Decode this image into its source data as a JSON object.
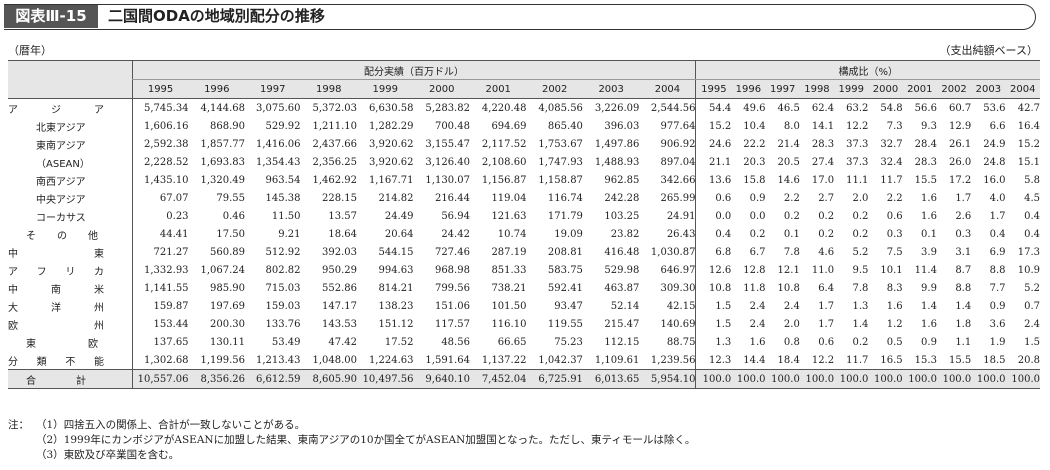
{
  "title": {
    "badge": "図表Ⅲ-15",
    "text": "二国間ODAの地域別配分の推移"
  },
  "unit_left": "（暦年）",
  "unit_right": "（支出純額ベース）",
  "headers": {
    "group1": "配分実績（百万ドル）",
    "group2": "構成比（%）",
    "years": [
      "1995",
      "1996",
      "1997",
      "1998",
      "1999",
      "2000",
      "2001",
      "2002",
      "2003",
      "2004"
    ]
  },
  "rows": [
    {
      "label": "アジア",
      "sub": false,
      "spread": true,
      "amounts": [
        "5,745.34",
        "4,144.68",
        "3,075.60",
        "5,372.03",
        "6,630.58",
        "5,283.82",
        "4,220.48",
        "4,085.56",
        "3,226.09",
        "2,544.56"
      ],
      "shares": [
        "54.4",
        "49.6",
        "46.5",
        "62.4",
        "63.2",
        "54.8",
        "56.6",
        "60.7",
        "53.6",
        "42.7"
      ]
    },
    {
      "label": "北東アジア",
      "sub": true,
      "spread": false,
      "amounts": [
        "1,606.16",
        "868.90",
        "529.92",
        "1,211.10",
        "1,282.29",
        "700.48",
        "694.69",
        "865.40",
        "396.03",
        "977.64"
      ],
      "shares": [
        "15.2",
        "10.4",
        "8.0",
        "14.1",
        "12.2",
        "7.3",
        "9.3",
        "12.9",
        "6.6",
        "16.4"
      ]
    },
    {
      "label": "東南アジア",
      "sub": true,
      "spread": false,
      "amounts": [
        "2,592.38",
        "1,857.77",
        "1,416.06",
        "2,437.66",
        "3,920.62",
        "3,155.47",
        "2,117.52",
        "1,753.67",
        "1,497.86",
        "906.92"
      ],
      "shares": [
        "24.6",
        "22.2",
        "21.4",
        "28.3",
        "37.3",
        "32.7",
        "28.4",
        "26.1",
        "24.9",
        "15.2"
      ]
    },
    {
      "label": "（ASEAN）",
      "sub": true,
      "spread": false,
      "amounts": [
        "2,228.52",
        "1,693.83",
        "1,354.43",
        "2,356.25",
        "3,920.62",
        "3,126.40",
        "2,108.60",
        "1,747.93",
        "1,488.93",
        "897.04"
      ],
      "shares": [
        "21.1",
        "20.3",
        "20.5",
        "27.4",
        "37.3",
        "32.4",
        "28.3",
        "26.0",
        "24.8",
        "15.1"
      ]
    },
    {
      "label": "南西アジア",
      "sub": true,
      "spread": false,
      "amounts": [
        "1,435.10",
        "1,320.49",
        "963.54",
        "1,462.92",
        "1,167.71",
        "1,130.07",
        "1,156.87",
        "1,158.87",
        "962.85",
        "342.66"
      ],
      "shares": [
        "13.6",
        "15.8",
        "14.6",
        "17.0",
        "11.1",
        "11.7",
        "15.5",
        "17.2",
        "16.0",
        "5.8"
      ]
    },
    {
      "label": "中央アジア",
      "sub": true,
      "spread": false,
      "amounts": [
        "67.07",
        "79.55",
        "145.38",
        "228.15",
        "214.82",
        "216.44",
        "119.04",
        "116.74",
        "242.28",
        "265.99"
      ],
      "shares": [
        "0.6",
        "0.9",
        "2.2",
        "2.7",
        "2.0",
        "2.2",
        "1.6",
        "1.7",
        "4.0",
        "4.5"
      ]
    },
    {
      "label": "コーカサス",
      "sub": true,
      "spread": false,
      "amounts": [
        "0.23",
        "0.46",
        "11.50",
        "13.57",
        "24.49",
        "56.94",
        "121.63",
        "171.79",
        "103.25",
        "24.91"
      ],
      "shares": [
        "0.0",
        "0.0",
        "0.2",
        "0.2",
        "0.2",
        "0.6",
        "1.6",
        "2.6",
        "1.7",
        "0.4"
      ]
    },
    {
      "label": "その他",
      "sub": true,
      "spread": true,
      "amounts": [
        "44.41",
        "17.50",
        "9.21",
        "18.64",
        "20.64",
        "24.42",
        "10.74",
        "19.09",
        "23.82",
        "26.43"
      ],
      "shares": [
        "0.4",
        "0.2",
        "0.1",
        "0.2",
        "0.2",
        "0.3",
        "0.1",
        "0.3",
        "0.4",
        "0.4"
      ]
    },
    {
      "label": "中東",
      "sub": false,
      "spread": true,
      "amounts": [
        "721.27",
        "560.89",
        "512.92",
        "392.03",
        "544.15",
        "727.46",
        "287.19",
        "208.81",
        "416.48",
        "1,030.87"
      ],
      "shares": [
        "6.8",
        "6.7",
        "7.8",
        "4.6",
        "5.2",
        "7.5",
        "3.9",
        "3.1",
        "6.9",
        "17.3"
      ]
    },
    {
      "label": "アフリカ",
      "sub": false,
      "spread": true,
      "amounts": [
        "1,332.93",
        "1,067.24",
        "802.82",
        "950.29",
        "994.63",
        "968.98",
        "851.33",
        "583.75",
        "529.98",
        "646.97"
      ],
      "shares": [
        "12.6",
        "12.8",
        "12.1",
        "11.0",
        "9.5",
        "10.1",
        "11.4",
        "8.7",
        "8.8",
        "10.9"
      ]
    },
    {
      "label": "中南米",
      "sub": false,
      "spread": true,
      "amounts": [
        "1,141.55",
        "985.90",
        "715.03",
        "552.86",
        "814.21",
        "799.56",
        "738.21",
        "592.41",
        "463.87",
        "309.30"
      ],
      "shares": [
        "10.8",
        "11.8",
        "10.8",
        "6.4",
        "7.8",
        "8.3",
        "9.9",
        "8.8",
        "7.7",
        "5.2"
      ]
    },
    {
      "label": "大洋州",
      "sub": false,
      "spread": true,
      "amounts": [
        "159.87",
        "197.69",
        "159.03",
        "147.17",
        "138.23",
        "151.06",
        "101.50",
        "93.47",
        "52.14",
        "42.15"
      ],
      "shares": [
        "1.5",
        "2.4",
        "2.4",
        "1.7",
        "1.3",
        "1.6",
        "1.4",
        "1.4",
        "0.9",
        "0.7"
      ]
    },
    {
      "label": "欧州",
      "sub": false,
      "spread": true,
      "amounts": [
        "153.44",
        "200.30",
        "133.76",
        "143.53",
        "151.12",
        "117.57",
        "116.10",
        "119.55",
        "215.47",
        "140.69"
      ],
      "shares": [
        "1.5",
        "2.4",
        "2.0",
        "1.7",
        "1.4",
        "1.2",
        "1.6",
        "1.8",
        "3.6",
        "2.4"
      ]
    },
    {
      "label": "東欧",
      "sub": true,
      "spread": true,
      "amounts": [
        "137.65",
        "130.11",
        "53.49",
        "47.42",
        "17.52",
        "48.56",
        "66.65",
        "75.23",
        "112.15",
        "88.75"
      ],
      "shares": [
        "1.3",
        "1.6",
        "0.8",
        "0.6",
        "0.2",
        "0.5",
        "0.9",
        "1.1",
        "1.9",
        "1.5"
      ]
    },
    {
      "label": "分類不能",
      "sub": false,
      "spread": true,
      "amounts": [
        "1,302.68",
        "1,199.56",
        "1,213.43",
        "1,048.00",
        "1,224.63",
        "1,591.64",
        "1,137.22",
        "1,042.37",
        "1,109.61",
        "1,239.56"
      ],
      "shares": [
        "12.3",
        "14.4",
        "18.4",
        "12.2",
        "11.7",
        "16.5",
        "15.3",
        "15.5",
        "18.5",
        "20.8"
      ]
    }
  ],
  "total": {
    "label": "合計",
    "amounts": [
      "10,557.06",
      "8,356.26",
      "6,612.59",
      "8,605.90",
      "10,497.56",
      "9,640.10",
      "7,452.04",
      "6,725.91",
      "6,013.65",
      "5,954.10"
    ],
    "shares": [
      "100.0",
      "100.0",
      "100.0",
      "100.0",
      "100.0",
      "100.0",
      "100.0",
      "100.0",
      "100.0",
      "100.0"
    ]
  },
  "footnotes": {
    "label": "注：",
    "items": [
      {
        "num": "（1）",
        "text": "四捨五入の関係上、合計が一致しないことがある。"
      },
      {
        "num": "（2）",
        "text": "1999年にカンボジアがASEANに加盟した結果、東南アジアの10か国全てがASEAN加盟国となった。ただし、東ティモールは除く。"
      },
      {
        "num": "（3）",
        "text": "東欧及び卒業国を含む。"
      }
    ]
  }
}
